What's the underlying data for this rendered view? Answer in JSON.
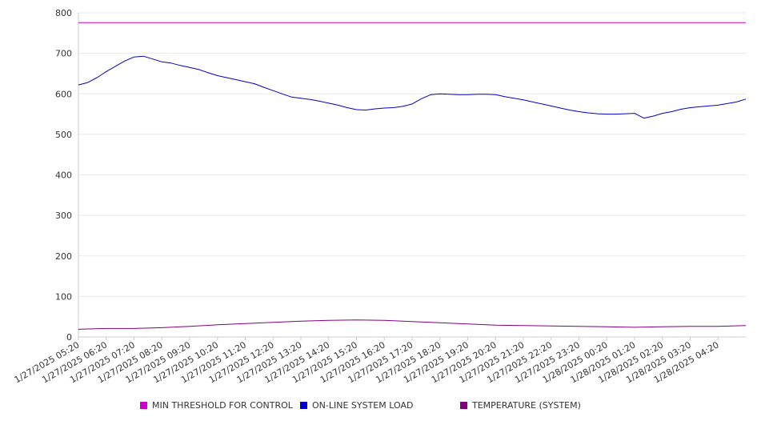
{
  "chart_data": {
    "type": "line",
    "y_ticks": [
      "0",
      "100",
      "200",
      "300",
      "400",
      "500",
      "600",
      "700",
      "800"
    ],
    "ylim": [
      0,
      800
    ],
    "x_tick_labels": [
      "1/27/2025 05:20",
      "1/27/2025 06:20",
      "1/27/2025 07:20",
      "1/27/2025 08:20",
      "1/27/2025 09:20",
      "1/27/2025 10:20",
      "1/27/2025 11:20",
      "1/27/2025 12:20",
      "1/27/2025 13:20",
      "1/27/2025 14:20",
      "1/27/2025 15:20",
      "1/27/2025 16:20",
      "1/27/2025 17:20",
      "1/27/2025 18:20",
      "1/27/2025 19:20",
      "1/27/2025 20:20",
      "1/27/2025 21:20",
      "1/27/2025 22:20",
      "1/27/2025 23:20",
      "1/28/2025 00:20",
      "1/28/2025 01:20",
      "1/28/2025 02:20",
      "1/28/2025 03:20",
      "1/28/2025 04:20"
    ],
    "grid": true,
    "legend_position": "bottom",
    "series": [
      {
        "name": "MIN THRESHOLD FOR CONTROL",
        "color": "#cc00cc",
        "x": [
          "1/27/2025 05:20",
          "1/28/2025 05:20"
        ],
        "values": [
          776,
          776
        ]
      },
      {
        "name": "ON-LINE SYSTEM LOAD",
        "color": "#0000cc",
        "x": [
          "1/27/2025 05:20",
          "1/27/2025 05:40",
          "1/27/2025 06:00",
          "1/27/2025 06:20",
          "1/27/2025 06:40",
          "1/27/2025 07:00",
          "1/27/2025 07:20",
          "1/27/2025 07:40",
          "1/27/2025 08:00",
          "1/27/2025 08:20",
          "1/27/2025 08:40",
          "1/27/2025 09:00",
          "1/27/2025 09:20",
          "1/27/2025 09:40",
          "1/27/2025 10:00",
          "1/27/2025 10:20",
          "1/27/2025 10:40",
          "1/27/2025 11:00",
          "1/27/2025 11:20",
          "1/27/2025 11:40",
          "1/27/2025 12:00",
          "1/27/2025 12:20",
          "1/27/2025 12:40",
          "1/27/2025 13:00",
          "1/27/2025 13:20",
          "1/27/2025 13:40",
          "1/27/2025 14:00",
          "1/27/2025 14:20",
          "1/27/2025 14:40",
          "1/27/2025 15:00",
          "1/27/2025 15:20",
          "1/27/2025 15:40",
          "1/27/2025 16:00",
          "1/27/2025 16:20",
          "1/27/2025 16:40",
          "1/27/2025 17:00",
          "1/27/2025 17:20",
          "1/27/2025 17:40",
          "1/27/2025 18:00",
          "1/27/2025 18:20",
          "1/27/2025 18:40",
          "1/27/2025 19:00",
          "1/27/2025 19:20",
          "1/27/2025 19:40",
          "1/27/2025 20:00",
          "1/27/2025 20:20",
          "1/27/2025 20:40",
          "1/27/2025 21:00",
          "1/27/2025 21:20",
          "1/27/2025 21:40",
          "1/27/2025 22:00",
          "1/27/2025 22:20",
          "1/27/2025 22:40",
          "1/27/2025 23:00",
          "1/27/2025 23:20",
          "1/27/2025 23:40",
          "1/28/2025 00:00",
          "1/28/2025 00:20",
          "1/28/2025 00:40",
          "1/28/2025 01:00",
          "1/28/2025 01:20",
          "1/28/2025 01:40",
          "1/28/2025 02:00",
          "1/28/2025 02:20",
          "1/28/2025 02:40",
          "1/28/2025 03:00",
          "1/28/2025 03:20",
          "1/28/2025 03:40",
          "1/28/2025 04:00",
          "1/28/2025 04:20",
          "1/28/2025 04:40",
          "1/28/2025 05:00",
          "1/28/2025 05:20"
        ],
        "values": [
          622,
          628,
          640,
          655,
          668,
          681,
          691,
          693,
          686,
          679,
          676,
          670,
          665,
          660,
          652,
          645,
          640,
          635,
          630,
          625,
          616,
          608,
          600,
          592,
          589,
          586,
          582,
          577,
          572,
          566,
          561,
          560,
          563,
          565,
          566,
          569,
          575,
          588,
          598,
          600,
          599,
          598,
          598,
          599,
          599,
          598,
          593,
          589,
          585,
          580,
          575,
          570,
          565,
          560,
          556,
          553,
          551,
          550,
          550,
          551,
          552,
          540,
          545,
          552,
          556,
          562,
          566,
          568,
          570,
          572,
          576,
          580,
          587
        ]
      },
      {
        "name": "TEMPERATURE (SYSTEM)",
        "color": "#800080",
        "x": [
          "1/27/2025 05:20",
          "1/27/2025 06:20",
          "1/27/2025 07:20",
          "1/27/2025 08:20",
          "1/27/2025 09:20",
          "1/27/2025 10:20",
          "1/27/2025 11:20",
          "1/27/2025 12:20",
          "1/27/2025 13:20",
          "1/27/2025 14:20",
          "1/27/2025 15:20",
          "1/27/2025 16:20",
          "1/27/2025 17:20",
          "1/27/2025 18:20",
          "1/27/2025 19:20",
          "1/27/2025 20:20",
          "1/27/2025 21:20",
          "1/27/2025 22:20",
          "1/27/2025 23:20",
          "1/28/2025 00:20",
          "1/28/2025 01:20",
          "1/28/2025 02:20",
          "1/28/2025 03:20",
          "1/28/2025 04:20",
          "1/28/2025 05:20"
        ],
        "values": [
          19,
          21,
          21,
          23,
          26,
          30,
          33,
          36,
          39,
          41,
          42,
          41,
          38,
          35,
          32,
          29,
          28,
          27,
          26,
          25,
          24,
          25,
          26,
          26,
          28
        ]
      }
    ]
  }
}
